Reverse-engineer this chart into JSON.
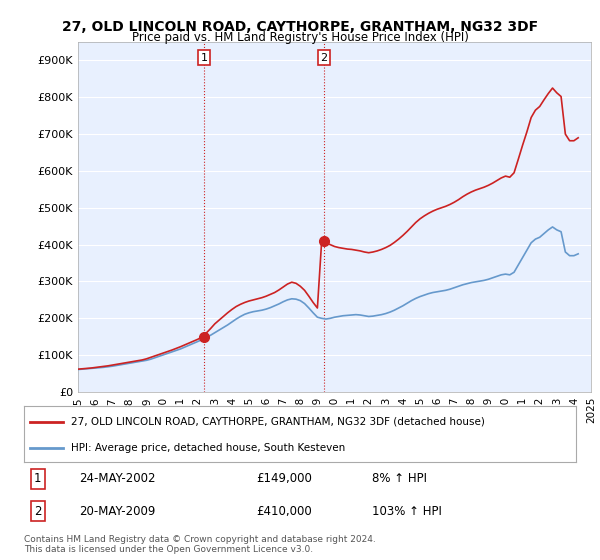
{
  "title": "27, OLD LINCOLN ROAD, CAYTHORPE, GRANTHAM, NG32 3DF",
  "subtitle": "Price paid vs. HM Land Registry's House Price Index (HPI)",
  "footer": "Contains HM Land Registry data © Crown copyright and database right 2024.\nThis data is licensed under the Open Government Licence v3.0.",
  "legend_line1": "27, OLD LINCOLN ROAD, CAYTHORPE, GRANTHAM, NG32 3DF (detached house)",
  "legend_line2": "HPI: Average price, detached house, South Kesteven",
  "purchase1_date": "24-MAY-2002",
  "purchase1_price": 149000,
  "purchase1_pct": "8% ↑ HPI",
  "purchase2_date": "20-MAY-2009",
  "purchase2_price": 410000,
  "purchase2_pct": "103% ↑ HPI",
  "ylim": [
    0,
    950000
  ],
  "yticks": [
    0,
    100000,
    200000,
    300000,
    400000,
    500000,
    600000,
    700000,
    800000,
    900000
  ],
  "background_color": "#f0f4ff",
  "plot_bg_color": "#e8f0fe",
  "line_color_hpi": "#6699cc",
  "line_color_property": "#cc2222",
  "vline_color": "#cc2222",
  "marker_color": "#cc2222",
  "purchase1_year": 2002.38,
  "purchase2_year": 2009.38,
  "hpi_years": [
    1995.0,
    1995.25,
    1995.5,
    1995.75,
    1996.0,
    1996.25,
    1996.5,
    1996.75,
    1997.0,
    1997.25,
    1997.5,
    1997.75,
    1998.0,
    1998.25,
    1998.5,
    1998.75,
    1999.0,
    1999.25,
    1999.5,
    1999.75,
    2000.0,
    2000.25,
    2000.5,
    2000.75,
    2001.0,
    2001.25,
    2001.5,
    2001.75,
    2002.0,
    2002.25,
    2002.5,
    2002.75,
    2003.0,
    2003.25,
    2003.5,
    2003.75,
    2004.0,
    2004.25,
    2004.5,
    2004.75,
    2005.0,
    2005.25,
    2005.5,
    2005.75,
    2006.0,
    2006.25,
    2006.5,
    2006.75,
    2007.0,
    2007.25,
    2007.5,
    2007.75,
    2008.0,
    2008.25,
    2008.5,
    2008.75,
    2009.0,
    2009.25,
    2009.5,
    2009.75,
    2010.0,
    2010.25,
    2010.5,
    2010.75,
    2011.0,
    2011.25,
    2011.5,
    2011.75,
    2012.0,
    2012.25,
    2012.5,
    2012.75,
    2013.0,
    2013.25,
    2013.5,
    2013.75,
    2014.0,
    2014.25,
    2014.5,
    2014.75,
    2015.0,
    2015.25,
    2015.5,
    2015.75,
    2016.0,
    2016.25,
    2016.5,
    2016.75,
    2017.0,
    2017.25,
    2017.5,
    2017.75,
    2018.0,
    2018.25,
    2018.5,
    2018.75,
    2019.0,
    2019.25,
    2019.5,
    2019.75,
    2020.0,
    2020.25,
    2020.5,
    2020.75,
    2021.0,
    2021.25,
    2021.5,
    2021.75,
    2022.0,
    2022.25,
    2022.5,
    2022.75,
    2023.0,
    2023.25,
    2023.5,
    2023.75,
    2024.0,
    2024.25
  ],
  "hpi_values": [
    61000,
    62000,
    63000,
    64000,
    65000,
    66000,
    67000,
    68500,
    70000,
    72000,
    74000,
    76000,
    78000,
    80000,
    82000,
    84000,
    86000,
    89000,
    93000,
    97000,
    101000,
    105000,
    109000,
    113000,
    117000,
    122000,
    127000,
    132000,
    137000,
    142000,
    148000,
    154000,
    161000,
    168000,
    175000,
    182000,
    190000,
    198000,
    205000,
    211000,
    215000,
    218000,
    220000,
    222000,
    225000,
    229000,
    234000,
    239000,
    245000,
    250000,
    253000,
    252000,
    248000,
    240000,
    228000,
    215000,
    203000,
    200000,
    198000,
    200000,
    203000,
    205000,
    207000,
    208000,
    209000,
    210000,
    209000,
    207000,
    205000,
    206000,
    208000,
    210000,
    213000,
    217000,
    222000,
    228000,
    234000,
    241000,
    248000,
    254000,
    259000,
    263000,
    267000,
    270000,
    272000,
    274000,
    276000,
    279000,
    283000,
    287000,
    291000,
    294000,
    297000,
    299000,
    301000,
    303000,
    306000,
    310000,
    314000,
    318000,
    320000,
    318000,
    325000,
    345000,
    365000,
    385000,
    405000,
    415000,
    420000,
    430000,
    440000,
    448000,
    440000,
    435000,
    380000,
    370000,
    370000,
    375000
  ],
  "prop_years": [
    1995.0,
    1995.25,
    1995.5,
    1995.75,
    1996.0,
    1996.25,
    1996.5,
    1996.75,
    1997.0,
    1997.25,
    1997.5,
    1997.75,
    1998.0,
    1998.25,
    1998.5,
    1998.75,
    1999.0,
    1999.25,
    1999.5,
    1999.75,
    2000.0,
    2000.25,
    2000.5,
    2000.75,
    2001.0,
    2001.25,
    2001.5,
    2001.75,
    2002.0,
    2002.25,
    2002.5,
    2002.75,
    2003.0,
    2003.25,
    2003.5,
    2003.75,
    2004.0,
    2004.25,
    2004.5,
    2004.75,
    2005.0,
    2005.25,
    2005.5,
    2005.75,
    2006.0,
    2006.25,
    2006.5,
    2006.75,
    2007.0,
    2007.25,
    2007.5,
    2007.75,
    2008.0,
    2008.25,
    2008.5,
    2008.75,
    2009.0,
    2009.25,
    2009.5,
    2009.75,
    2010.0,
    2010.25,
    2010.5,
    2010.75,
    2011.0,
    2011.25,
    2011.5,
    2011.75,
    2012.0,
    2012.25,
    2012.5,
    2012.75,
    2013.0,
    2013.25,
    2013.5,
    2013.75,
    2014.0,
    2014.25,
    2014.5,
    2014.75,
    2015.0,
    2015.25,
    2015.5,
    2015.75,
    2016.0,
    2016.25,
    2016.5,
    2016.75,
    2017.0,
    2017.25,
    2017.5,
    2017.75,
    2018.0,
    2018.25,
    2018.5,
    2018.75,
    2019.0,
    2019.25,
    2019.5,
    2019.75,
    2020.0,
    2020.25,
    2020.5,
    2020.75,
    2021.0,
    2021.25,
    2021.5,
    2021.75,
    2022.0,
    2022.25,
    2022.5,
    2022.75,
    2023.0,
    2023.25,
    2023.5,
    2023.75,
    2024.0,
    2024.25
  ],
  "prop_values": [
    62000,
    63000,
    64000,
    65000,
    66500,
    68000,
    69500,
    71000,
    73000,
    75000,
    77000,
    79000,
    81000,
    83000,
    85000,
    87000,
    90000,
    94000,
    98000,
    102000,
    106000,
    110000,
    114000,
    118500,
    123000,
    128000,
    133000,
    138000,
    143000,
    149000,
    160000,
    172000,
    185000,
    195000,
    205000,
    215000,
    224000,
    232000,
    238000,
    243000,
    247000,
    250000,
    253000,
    256000,
    260000,
    265000,
    270000,
    277000,
    285000,
    293000,
    298000,
    295000,
    287000,
    276000,
    260000,
    243000,
    228000,
    410000,
    405000,
    400000,
    395000,
    392000,
    390000,
    388000,
    387000,
    385000,
    383000,
    380000,
    378000,
    380000,
    383000,
    387000,
    392000,
    398000,
    406000,
    415000,
    425000,
    436000,
    448000,
    460000,
    470000,
    478000,
    485000,
    491000,
    496000,
    500000,
    504000,
    509000,
    515000,
    522000,
    530000,
    537000,
    543000,
    548000,
    552000,
    556000,
    561000,
    567000,
    574000,
    581000,
    586000,
    583000,
    595000,
    632000,
    670000,
    706000,
    745000,
    765000,
    775000,
    793000,
    810000,
    825000,
    812000,
    802000,
    700000,
    682000,
    682000,
    690000
  ],
  "xtick_years": [
    1995,
    1996,
    1997,
    1998,
    1999,
    2000,
    2001,
    2002,
    2003,
    2004,
    2005,
    2006,
    2007,
    2008,
    2009,
    2010,
    2011,
    2012,
    2013,
    2014,
    2015,
    2016,
    2017,
    2018,
    2019,
    2020,
    2021,
    2022,
    2023,
    2024,
    2025
  ]
}
